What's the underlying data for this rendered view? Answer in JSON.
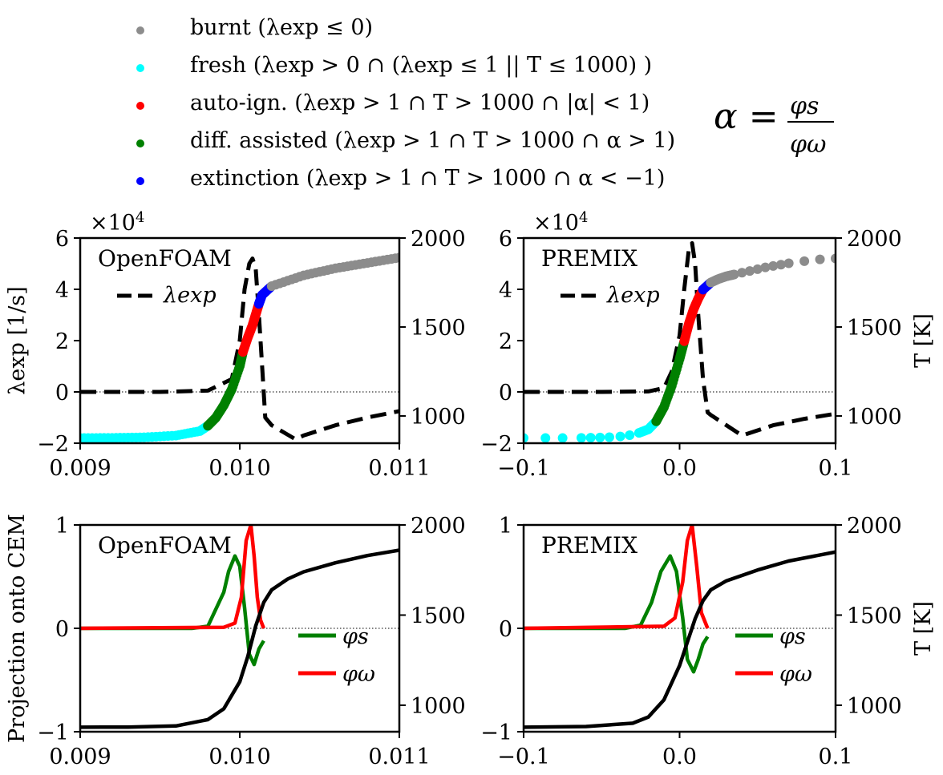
{
  "legend": {
    "items": [
      {
        "label": "burnt (λexp ≤ 0)",
        "color": "#8c8c8c"
      },
      {
        "label": "fresh (λexp > 0 ∩ (λexp ≤ 1 || T ≤ 1000) )",
        "color": "#00ffff"
      },
      {
        "label": "auto-ign. (λexp > 1 ∩ T > 1000 ∩ |α| < 1)",
        "color": "#ff0000"
      },
      {
        "label": "diff. assisted (λexp > 1 ∩ T > 1000 ∩ α > 1)",
        "color": "#008000"
      },
      {
        "label": "extinction (λexp > 1 ∩ T > 1000 ∩ α < −1)",
        "color": "#0000ff"
      }
    ],
    "formula": {
      "lhs": "α =",
      "num": "φs",
      "den": "φω"
    }
  },
  "chart_data": [
    {
      "type": "line",
      "panel": "top-left",
      "title": "OpenFOAM",
      "xlim": [
        0.009,
        0.011
      ],
      "xticks": [
        "0.009",
        "0.010",
        "0.011"
      ],
      "ylim": [
        -2,
        6
      ],
      "yticks": [
        "−2",
        "0",
        "2",
        "4",
        "6"
      ],
      "ylabel": "λexp [1/s]",
      "yscale_note": "×10^4",
      "y2lim": [
        847,
        2000
      ],
      "y2ticks": [
        "1000",
        "1500",
        "2000"
      ],
      "y2label": "",
      "legend": [
        {
          "label": "λexp",
          "style": "dashed",
          "color": "#000000"
        }
      ],
      "series": [
        {
          "name": "λexp",
          "axis": "left",
          "style": "dashed",
          "color": "#000000",
          "x": [
            0.009,
            0.0095,
            0.0098,
            0.00995,
            0.01,
            0.01003,
            0.01006,
            0.01008,
            0.0101,
            0.01012,
            0.01014,
            0.01016,
            0.0102,
            0.01035,
            0.0104,
            0.0106,
            0.0108,
            0.011
          ],
          "y": [
            0,
            0,
            0.05,
            0.5,
            2.0,
            4.0,
            5.0,
            5.2,
            4.8,
            3.0,
            1.0,
            -1.0,
            -1.3,
            -1.85,
            -1.7,
            -1.3,
            -1.0,
            -0.75
          ]
        },
        {
          "name": "T (classified)",
          "axis": "right",
          "style": "scatter",
          "x": [
            0.009,
            0.0092,
            0.0094,
            0.0096,
            0.00975,
            0.0098,
            0.00985,
            0.0099,
            0.00995,
            0.01,
            0.01002,
            0.01005,
            0.01008,
            0.0101,
            0.01012,
            0.01014,
            0.0102,
            0.0104,
            0.0106,
            0.0108,
            0.011
          ],
          "y": [
            876,
            877,
            880,
            890,
            915,
            945,
            990,
            1060,
            1150,
            1280,
            1360,
            1440,
            1510,
            1570,
            1630,
            1680,
            1730,
            1790,
            1830,
            1860,
            1890
          ],
          "category": [
            "fresh",
            "fresh",
            "fresh",
            "fresh",
            "fresh",
            "diff",
            "diff",
            "diff",
            "diff",
            "diff",
            "auto",
            "auto",
            "auto",
            "auto",
            "ext",
            "ext",
            "burnt",
            "burnt",
            "burnt",
            "burnt",
            "burnt"
          ]
        }
      ],
      "hline": 0
    },
    {
      "type": "line",
      "panel": "top-right",
      "title": "PREMIX",
      "xlim": [
        -0.1,
        0.1
      ],
      "xticks": [
        "−0.1",
        "0.0",
        "0.1"
      ],
      "ylim": [
        -2,
        6
      ],
      "yticks": [
        "−2",
        "0",
        "2",
        "4",
        "6"
      ],
      "yscale_note": "×10^4",
      "y2lim": [
        847,
        2000
      ],
      "y2ticks": [
        "1000",
        "1500",
        "2000"
      ],
      "y2label": "T [K]",
      "legend": [
        {
          "label": "λexp",
          "style": "dashed",
          "color": "#000000"
        }
      ],
      "series": [
        {
          "name": "λexp",
          "axis": "left",
          "style": "dashed",
          "color": "#000000",
          "x": [
            -0.1,
            -0.05,
            -0.02,
            -0.01,
            -0.005,
            0.0,
            0.003,
            0.006,
            0.008,
            0.01,
            0.012,
            0.015,
            0.018,
            0.02,
            0.04,
            0.045,
            0.06,
            0.08,
            0.1
          ],
          "y": [
            0,
            0,
            0.02,
            0.15,
            0.8,
            2.2,
            4.0,
            5.6,
            5.8,
            5.0,
            3.0,
            0.5,
            -0.8,
            -0.9,
            -1.7,
            -1.6,
            -1.3,
            -1.05,
            -0.85
          ]
        },
        {
          "name": "T (classified)",
          "axis": "right",
          "style": "scatter",
          "x": [
            -0.1,
            -0.086,
            -0.075,
            -0.063,
            -0.057,
            -0.051,
            -0.045,
            -0.038,
            -0.032,
            -0.026,
            -0.02,
            -0.015,
            -0.01,
            -0.005,
            0.0,
            0.003,
            0.006,
            0.009,
            0.012,
            0.015,
            0.02,
            0.025,
            0.03,
            0.035,
            0.04,
            0.045,
            0.05,
            0.055,
            0.06,
            0.065,
            0.07,
            0.08,
            0.09,
            0.1
          ],
          "y": [
            876,
            876,
            876,
            877,
            878,
            879,
            881,
            885,
            892,
            905,
            925,
            970,
            1050,
            1170,
            1320,
            1420,
            1520,
            1600,
            1660,
            1710,
            1750,
            1770,
            1785,
            1795,
            1805,
            1815,
            1825,
            1835,
            1843,
            1850,
            1858,
            1870,
            1880,
            1885
          ],
          "category": [
            "fresh",
            "fresh",
            "fresh",
            "fresh",
            "fresh",
            "fresh",
            "fresh",
            "fresh",
            "fresh",
            "fresh",
            "fresh",
            "diff",
            "diff",
            "diff",
            "diff",
            "auto",
            "auto",
            "auto",
            "auto",
            "ext",
            "burnt",
            "burnt",
            "burnt",
            "burnt",
            "burnt",
            "burnt",
            "burnt",
            "burnt",
            "burnt",
            "burnt",
            "burnt",
            "burnt",
            "burnt",
            "burnt"
          ]
        }
      ],
      "hline": 0
    },
    {
      "type": "line",
      "panel": "bottom-left",
      "title": "OpenFOAM",
      "xlim": [
        0.009,
        0.011
      ],
      "xticks": [
        "0.009",
        "0.010",
        "0.011"
      ],
      "ylim": [
        -1,
        1
      ],
      "yticks": [
        "−1",
        "0",
        "1"
      ],
      "ylabel": "Projection onto CEM",
      "y2lim": [
        853,
        2000
      ],
      "y2ticks": [
        "1000",
        "1500",
        "2000"
      ],
      "y2label": "",
      "legend": [
        {
          "label": "φs",
          "color": "#008000"
        },
        {
          "label": "φω",
          "color": "#ff0000"
        }
      ],
      "series": [
        {
          "name": "φs",
          "axis": "left",
          "color": "#008000",
          "x": [
            0.009,
            0.0097,
            0.0098,
            0.0099,
            0.00993,
            0.00997,
            0.01,
            0.01003,
            0.01006,
            0.01009,
            0.01012,
            0.01015
          ],
          "y": [
            0,
            0,
            0.02,
            0.35,
            0.55,
            0.7,
            0.6,
            0.2,
            -0.25,
            -0.35,
            -0.2,
            -0.12
          ]
        },
        {
          "name": "φω",
          "axis": "left",
          "color": "#ff0000",
          "x": [
            0.009,
            0.0099,
            0.00997,
            0.01001,
            0.01004,
            0.01007,
            0.01009,
            0.01011,
            0.01013,
            0.01015
          ],
          "y": [
            0,
            0.01,
            0.05,
            0.3,
            0.85,
            1.0,
            0.7,
            0.3,
            0.08,
            0.0
          ]
        },
        {
          "name": "T",
          "axis": "right",
          "color": "#000000",
          "x": [
            0.009,
            0.0093,
            0.0096,
            0.0098,
            0.0099,
            0.01,
            0.01005,
            0.0101,
            0.01015,
            0.0102,
            0.0103,
            0.0104,
            0.0106,
            0.0108,
            0.011
          ],
          "y": [
            878,
            879,
            885,
            920,
            980,
            1130,
            1270,
            1440,
            1570,
            1640,
            1700,
            1740,
            1790,
            1830,
            1860
          ]
        }
      ],
      "hline": 0
    },
    {
      "type": "line",
      "panel": "bottom-right",
      "title": "PREMIX",
      "xlim": [
        -0.1,
        0.1
      ],
      "xticks": [
        "−0.1",
        "0.0",
        "0.1"
      ],
      "ylim": [
        -1,
        1
      ],
      "yticks": [
        "−1",
        "0",
        "1"
      ],
      "y2lim": [
        853,
        2000
      ],
      "y2ticks": [
        "1000",
        "1500",
        "2000"
      ],
      "y2label": "T [K]",
      "legend": [
        {
          "label": "φs",
          "color": "#008000"
        },
        {
          "label": "φω",
          "color": "#ff0000"
        }
      ],
      "series": [
        {
          "name": "φs",
          "axis": "left",
          "color": "#008000",
          "x": [
            -0.1,
            -0.035,
            -0.025,
            -0.018,
            -0.012,
            -0.006,
            -0.002,
            0.002,
            0.005,
            0.009,
            0.012,
            0.015,
            0.018
          ],
          "y": [
            0,
            0,
            0.03,
            0.25,
            0.55,
            0.7,
            0.55,
            0.1,
            -0.3,
            -0.42,
            -0.3,
            -0.15,
            -0.08
          ]
        },
        {
          "name": "φω",
          "axis": "left",
          "color": "#ff0000",
          "x": [
            -0.1,
            -0.01,
            -0.003,
            0.002,
            0.005,
            0.008,
            0.011,
            0.014,
            0.018
          ],
          "y": [
            0,
            0.02,
            0.1,
            0.45,
            0.85,
            1.0,
            0.6,
            0.15,
            0.0
          ]
        },
        {
          "name": "T",
          "axis": "right",
          "color": "#000000",
          "x": [
            -0.1,
            -0.06,
            -0.03,
            -0.02,
            -0.01,
            0.0,
            0.005,
            0.01,
            0.015,
            0.02,
            0.03,
            0.05,
            0.07,
            0.1
          ],
          "y": [
            878,
            882,
            900,
            935,
            1030,
            1220,
            1350,
            1480,
            1580,
            1640,
            1690,
            1750,
            1800,
            1850
          ]
        }
      ],
      "hline": 0
    }
  ]
}
